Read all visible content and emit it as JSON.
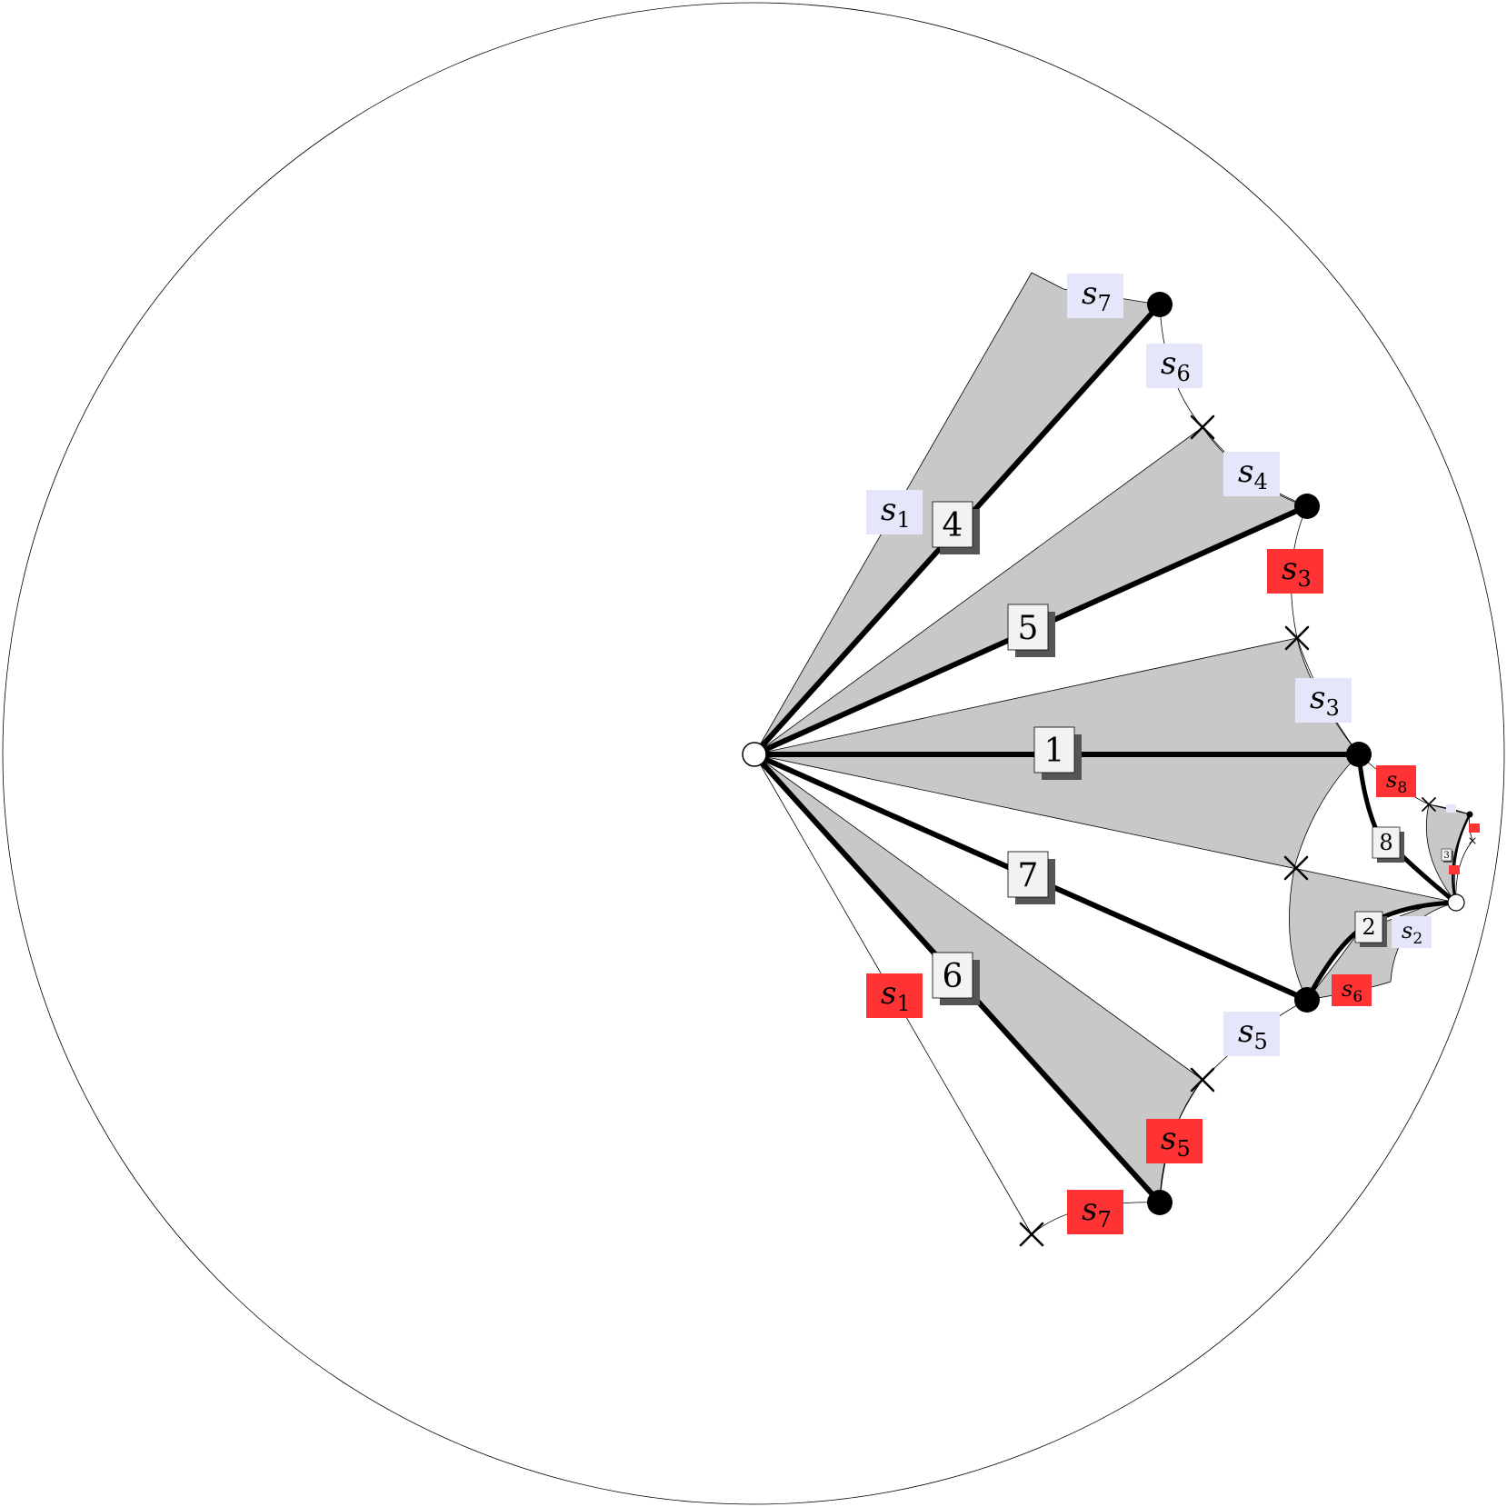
{
  "colors": {
    "region_fill": "#c8c8c8",
    "blue_label_fill": "#e6e6fa",
    "red_label_fill": "#ff3333",
    "edge_box_fill": "#f2f2f2",
    "edge_box_shadow": "#555555",
    "line": "#000000"
  },
  "edges": [
    {
      "label": "4"
    },
    {
      "label": "5"
    },
    {
      "label": "1"
    },
    {
      "label": "7"
    },
    {
      "label": "6"
    },
    {
      "label": "8"
    },
    {
      "label": "2"
    },
    {
      "label": "3"
    }
  ],
  "blue_labels": [
    {
      "letter": "s",
      "index": "7"
    },
    {
      "letter": "s",
      "index": "6"
    },
    {
      "letter": "s",
      "index": "4"
    },
    {
      "letter": "s",
      "index": "1"
    },
    {
      "letter": "s",
      "index": "3"
    },
    {
      "letter": "s",
      "index": "5"
    },
    {
      "letter": "s",
      "index": "2"
    }
  ],
  "red_labels": [
    {
      "letter": "s",
      "index": "3"
    },
    {
      "letter": "s",
      "index": "8"
    },
    {
      "letter": "s",
      "index": "1"
    },
    {
      "letter": "s",
      "index": "6"
    },
    {
      "letter": "s",
      "index": "5"
    },
    {
      "letter": "s",
      "index": "7"
    }
  ],
  "vertex_symbols": {
    "open_vertex": "white-circle",
    "filled_vertex": "black-circle",
    "cross_vertex": "x-mark"
  }
}
